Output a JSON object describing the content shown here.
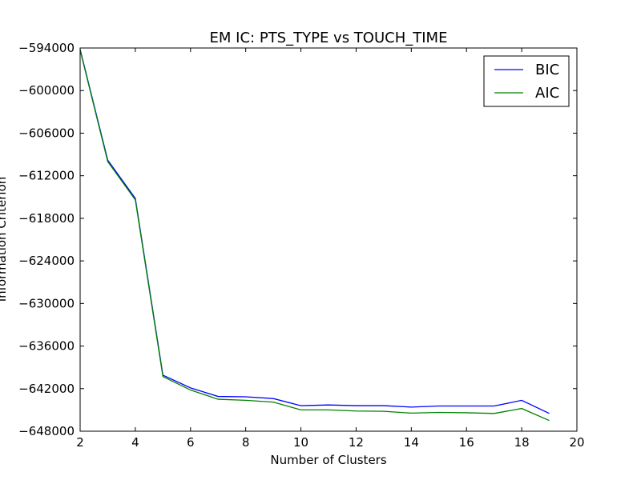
{
  "chart_data": {
    "type": "line",
    "title": "EM IC: PTS_TYPE vs TOUCH_TIME",
    "xlabel": "Number of Clusters",
    "ylabel": "Information Criterion",
    "xlim": [
      2,
      20
    ],
    "ylim": [
      -648000,
      -594000
    ],
    "xticks": [
      2,
      4,
      6,
      8,
      10,
      12,
      14,
      16,
      18,
      20
    ],
    "yticks": [
      -594000,
      -600000,
      -606000,
      -612000,
      -618000,
      -624000,
      -630000,
      -636000,
      -642000,
      -648000
    ],
    "ytick_labels": [
      "−594000",
      "−600000",
      "−606000",
      "−612000",
      "−618000",
      "−624000",
      "−630000",
      "−636000",
      "−642000",
      "−648000"
    ],
    "x": [
      2,
      3,
      4,
      5,
      6,
      7,
      8,
      9,
      10,
      11,
      12,
      13,
      14,
      15,
      16,
      17,
      18,
      19
    ],
    "series": [
      {
        "name": "BIC",
        "color": "#0000ff",
        "values": [
          -594200,
          -609800,
          -615200,
          -640100,
          -641900,
          -643100,
          -643150,
          -643400,
          -644400,
          -644300,
          -644400,
          -644400,
          -644600,
          -644450,
          -644450,
          -644450,
          -643650,
          -645500
        ]
      },
      {
        "name": "AIC",
        "color": "#008000",
        "values": [
          -594300,
          -610000,
          -615400,
          -640300,
          -642200,
          -643500,
          -643650,
          -643900,
          -645000,
          -645000,
          -645150,
          -645200,
          -645450,
          -645350,
          -645400,
          -645500,
          -644800,
          -646500
        ]
      }
    ],
    "legend_position": "top-right",
    "grid": false
  }
}
